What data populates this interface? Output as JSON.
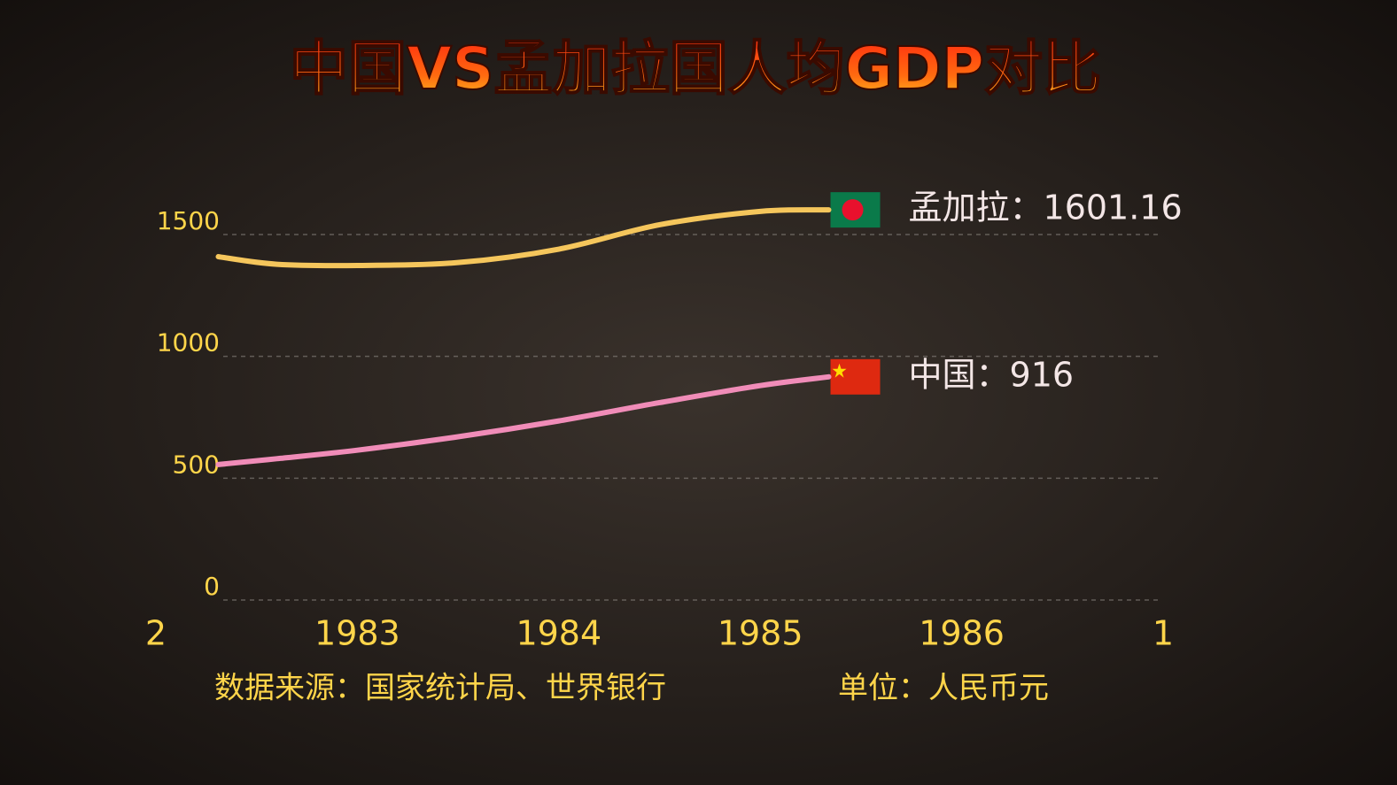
{
  "chart_data": {
    "type": "line",
    "title": "中国VS孟加拉国人均GDP对比",
    "source": "数据来源：国家统计局、世界银行",
    "unit_note": "单位：人民币元",
    "xlim": [
      1982,
      1987
    ],
    "xticks": [
      {
        "value": 1982,
        "label": "2"
      },
      1983,
      1984,
      1985,
      1986,
      {
        "value": 1987,
        "label": "1"
      }
    ],
    "ylim": [
      0,
      1500
    ],
    "yticks": [
      0,
      500,
      1000,
      1500
    ],
    "grid": true,
    "series": [
      {
        "name": "孟加拉",
        "color": "#f5c65c",
        "x": [
          1982.31,
          1982.6,
          1983,
          1983.5,
          1984,
          1984.5,
          1985,
          1985.34
        ],
        "values": [
          1409,
          1378,
          1373,
          1385,
          1440,
          1540,
          1595,
          1601.16
        ],
        "value_labels": [
          null,
          null,
          null,
          null,
          null,
          null,
          null,
          "孟加拉：1601.16"
        ]
      },
      {
        "name": "中国",
        "color": "#f08cb8",
        "x": [
          1982.31,
          1982.6,
          1983,
          1983.5,
          1984,
          1984.5,
          1985,
          1985.34
        ],
        "values": [
          556,
          580,
          615,
          670,
          735,
          810,
          880,
          916
        ],
        "value_labels": [
          null,
          null,
          null,
          null,
          null,
          null,
          null,
          "中国：916"
        ]
      }
    ]
  }
}
